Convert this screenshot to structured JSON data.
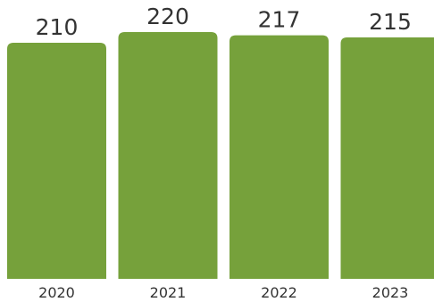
{
  "chart_data": {
    "type": "bar",
    "categories": [
      "2020",
      "2021",
      "2022",
      "2023"
    ],
    "values": [
      210,
      220,
      217,
      215
    ],
    "value_labels": [
      "210",
      "220",
      "217",
      "215"
    ],
    "bar_color": "#76a13b",
    "axes_visible": false,
    "grid": false
  }
}
